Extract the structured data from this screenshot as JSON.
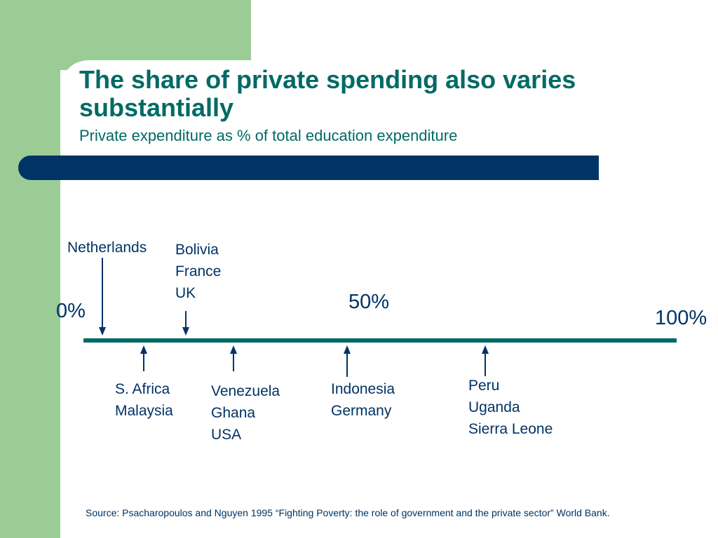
{
  "title": "The share of private spending also varies substantially",
  "subtitle": "Private expenditure as % of total education expenditure",
  "scale": {
    "left_label": "0%",
    "mid_label": "50%",
    "right_label": "100%"
  },
  "above_groups": [
    {
      "countries": [
        "Netherlands"
      ]
    },
    {
      "countries": [
        "Bolivia",
        "France",
        "UK"
      ]
    }
  ],
  "below_groups": [
    {
      "countries": [
        "S. Africa",
        "Malaysia"
      ]
    },
    {
      "countries": [
        "Venezuela",
        "Ghana",
        "USA"
      ]
    },
    {
      "countries": [
        "Indonesia",
        "Germany"
      ]
    },
    {
      "countries": [
        "Peru",
        "Uganda",
        "Sierra Leone"
      ]
    }
  ],
  "source": "Source: Psacharopoulos and Nguyen 1995 “Fighting Poverty: the role of government and the private sector” World Bank.",
  "colors": {
    "title": "#006a64",
    "band": "#003366",
    "accent_green": "#9ccc95",
    "text": "#003366"
  }
}
